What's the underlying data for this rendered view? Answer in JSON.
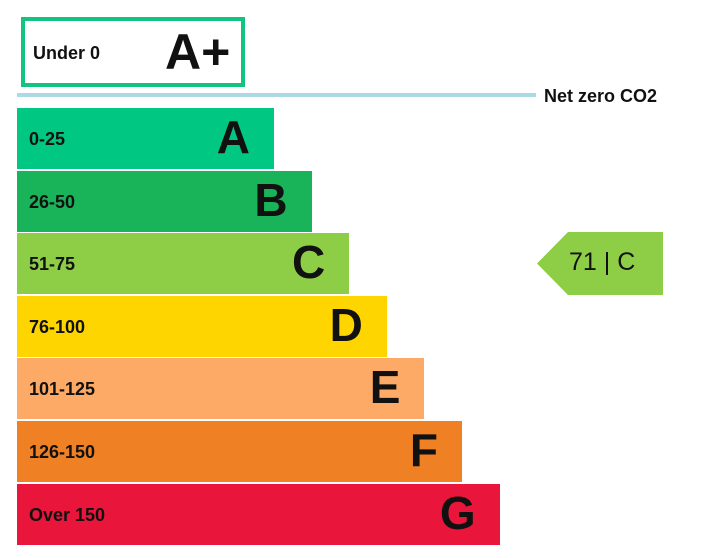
{
  "chart_data": {
    "type": "bar",
    "top_rating": {
      "range": "Under 0",
      "letter": "A+",
      "color": "#12c47f"
    },
    "threshold_label": "Net zero CO2",
    "bands": [
      {
        "range": "0-25",
        "letter": "A",
        "color": "#00c781"
      },
      {
        "range": "26-50",
        "letter": "B",
        "color": "#19b459"
      },
      {
        "range": "51-75",
        "letter": "C",
        "color": "#8dce46"
      },
      {
        "range": "76-100",
        "letter": "D",
        "color": "#ffd500"
      },
      {
        "range": "101-125",
        "letter": "E",
        "color": "#fcaa65"
      },
      {
        "range": "126-150",
        "letter": "F",
        "color": "#ef8023"
      },
      {
        "range": "Over 150",
        "letter": "G",
        "color": "#e9153b"
      }
    ],
    "current": {
      "value": "71",
      "separator": "|",
      "letter": "C",
      "color": "#8dce46"
    }
  }
}
